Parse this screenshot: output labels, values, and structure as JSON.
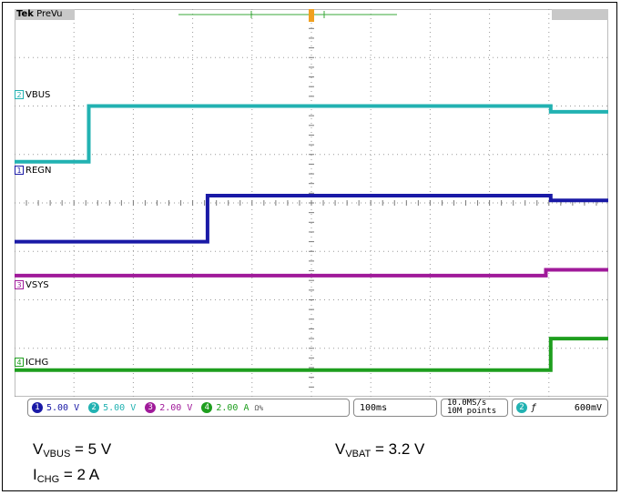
{
  "header": {
    "brand": "Tek",
    "mode": "PreVu"
  },
  "channels": [
    {
      "id": "2",
      "name": "VBUS",
      "color": "#22b2b2"
    },
    {
      "id": "1",
      "name": "REGN",
      "color": "#1a1aa6"
    },
    {
      "id": "3",
      "name": "VSYS",
      "color": "#a01a9a"
    },
    {
      "id": "4",
      "name": "ICHG",
      "color": "#1e9e1e"
    }
  ],
  "statusbar": {
    "ch1": {
      "badge": "1",
      "scale": "5.00 V",
      "color": "#1a1aa6"
    },
    "ch2": {
      "badge": "2",
      "scale": "5.00 V",
      "color": "#22b2b2"
    },
    "ch3": {
      "badge": "3",
      "scale": "2.00 V",
      "color": "#a01a9a"
    },
    "ch4": {
      "badge": "4",
      "scale": "2.00 A",
      "color": "#1e9e1e",
      "suffix": "Ω%"
    },
    "timebase": "100ms",
    "sample_rate": "10.0MS/s",
    "record_length": "10M points",
    "trigger": {
      "badge": "2",
      "slope": "ƒ",
      "level": "600mV"
    }
  },
  "captions": {
    "vbus": {
      "main": "V",
      "sub": "VBUS",
      "rest": " = 5 V"
    },
    "vbat": {
      "main": "V",
      "sub": "VBAT",
      "rest": " = 3.2 V"
    },
    "ichg": {
      "main": "I",
      "sub": "CHG",
      "rest": " = 2 A"
    }
  },
  "chart_data": {
    "type": "line",
    "title": "",
    "xlabel": "",
    "ylabel": "",
    "x_unit": "ms",
    "xlim": [
      0,
      1000
    ],
    "grid": true,
    "divisions": {
      "x": 10,
      "y": 8
    },
    "series": [
      {
        "name": "VBUS",
        "x": [
          0,
          125,
          125,
          903,
          903,
          1000
        ],
        "y_div": [
          4.85,
          4.85,
          6.0,
          6.0,
          5.88,
          5.88
        ]
      },
      {
        "name": "REGN",
        "x": [
          0,
          325,
          325,
          903,
          903,
          1000
        ],
        "y_div": [
          3.2,
          3.2,
          4.15,
          4.15,
          4.05,
          4.05
        ]
      },
      {
        "name": "VSYS",
        "x": [
          0,
          895,
          895,
          1000
        ],
        "y_div": [
          2.5,
          2.5,
          2.62,
          2.62
        ]
      },
      {
        "name": "ICHG",
        "x": [
          0,
          903,
          903,
          1000
        ],
        "y_div": [
          0.55,
          0.55,
          1.2,
          1.2
        ]
      }
    ]
  }
}
